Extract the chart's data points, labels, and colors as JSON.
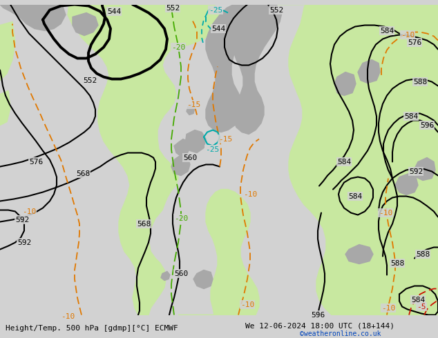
{
  "title_left": "Height/Temp. 500 hPa [gdmp][°C] ECMWF",
  "title_right": "We 12-06-2024 18:00 UTC (18+144)",
  "credit": "©weatheronline.co.uk",
  "bg_color": "#d2d2d2",
  "land_green_color": "#c8e8a0",
  "land_grey_color": "#a8a8a8",
  "ocean_color": "#d2d2d2",
  "contour_color": "#000000",
  "temp_orange_color": "#e07800",
  "temp_red_color": "#cc1100",
  "temp_cyan_color": "#00aaaa",
  "temp_green_color": "#44aa00",
  "label_fontsize": 8,
  "footer_fontsize": 9
}
